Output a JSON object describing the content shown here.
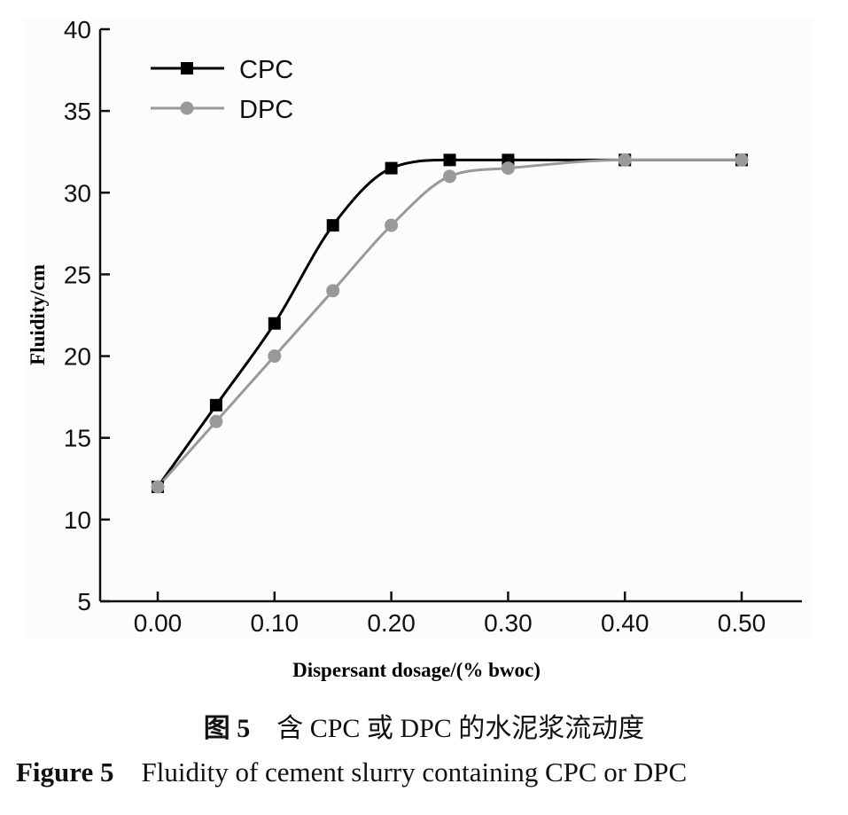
{
  "chart_data": {
    "type": "line",
    "xlabel": "Dispersant dosage/(% bwoc)",
    "ylabel": "Fluidity/cm",
    "xlim": [
      -0.05,
      0.55
    ],
    "ylim": [
      5,
      40
    ],
    "xticks": [
      "0.00",
      "0.10",
      "0.20",
      "0.30",
      "0.40",
      "0.50"
    ],
    "xtick_values": [
      0,
      0.1,
      0.2,
      0.3,
      0.4,
      0.5
    ],
    "yticks": [
      "5",
      "10",
      "15",
      "20",
      "25",
      "30",
      "35",
      "40"
    ],
    "ytick_values": [
      5,
      10,
      15,
      20,
      25,
      30,
      35,
      40
    ],
    "grid": false,
    "legend_position": "top-left",
    "x": [
      0,
      0.05,
      0.1,
      0.15,
      0.2,
      0.25,
      0.3,
      0.4,
      0.5
    ],
    "series": [
      {
        "name": "CPC",
        "values": [
          12,
          17,
          22,
          28,
          31.5,
          32,
          32,
          32,
          32
        ],
        "color": "#000000",
        "marker": "square"
      },
      {
        "name": "DPC",
        "values": [
          12,
          16,
          20,
          24,
          28,
          31,
          31.5,
          32,
          32
        ],
        "color": "#999999",
        "marker": "circle"
      }
    ]
  },
  "caption": {
    "cn_label": "图 5",
    "cn_text": "含 CPC 或 DPC 的水泥浆流动度",
    "en_label": "Figure 5",
    "en_text": "Fluidity of cement slurry containing CPC or DPC"
  }
}
